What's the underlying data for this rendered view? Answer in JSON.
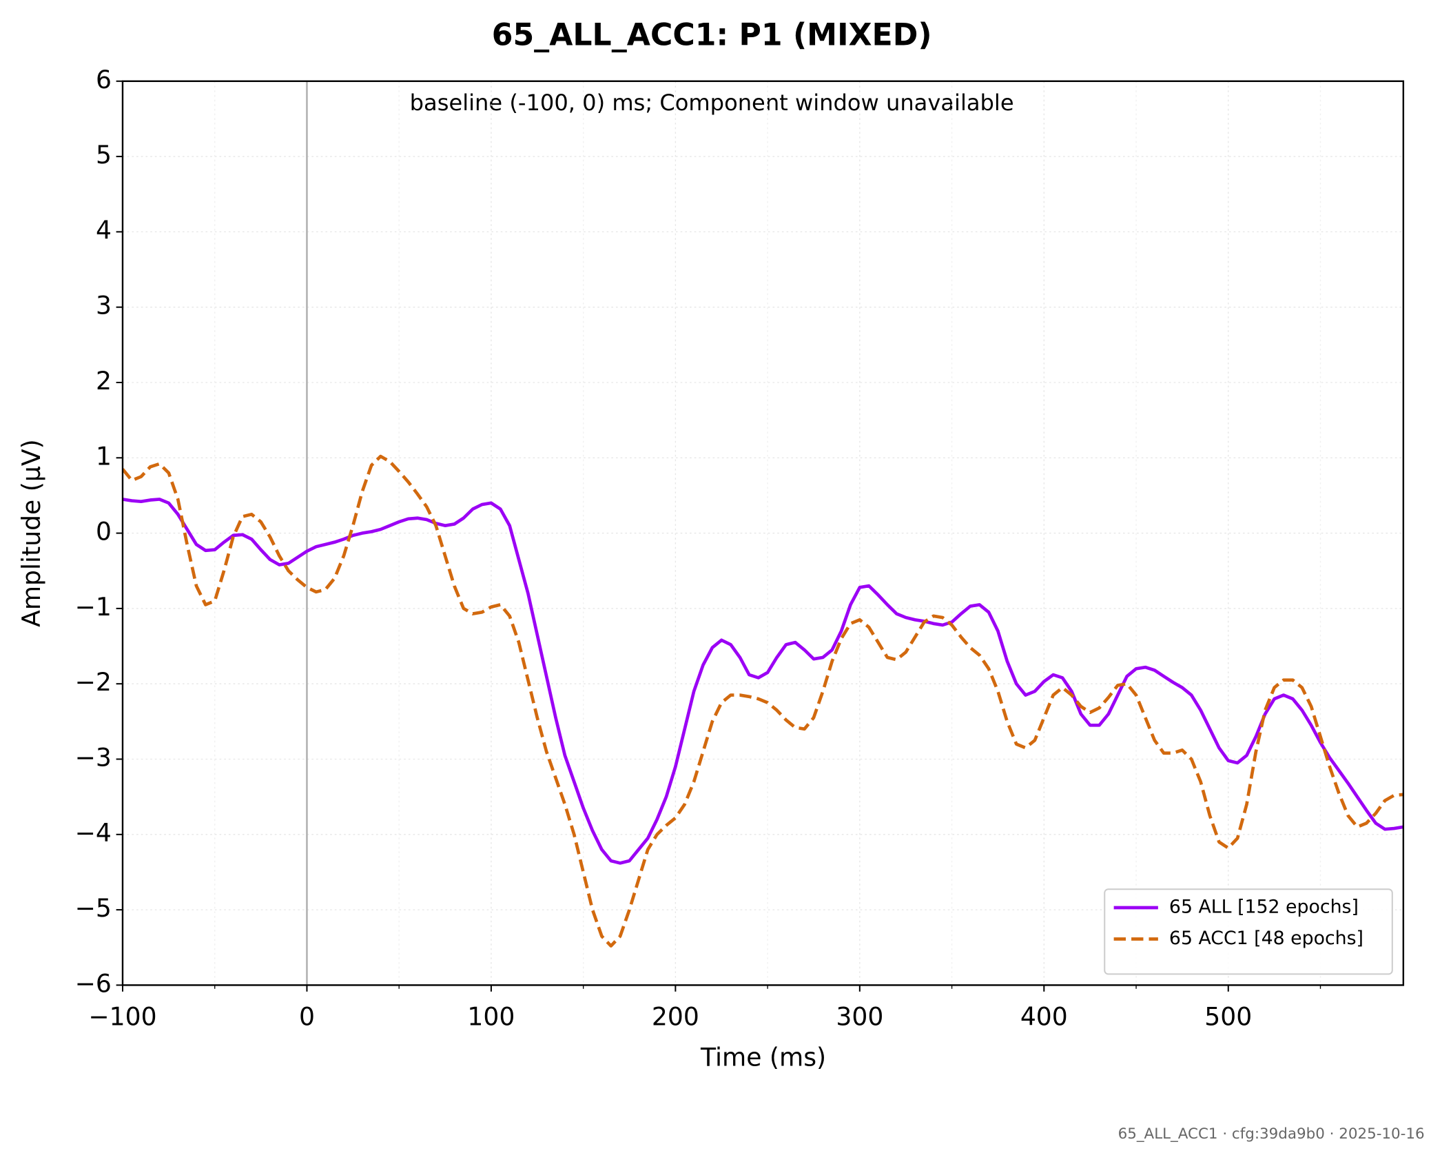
{
  "chart_data": {
    "type": "line",
    "title": "65_ALL_ACC1: P1 (MIXED)",
    "annotation": "baseline (-100, 0) ms; Component window unavailable",
    "xlabel": "Time (ms)",
    "ylabel": "Amplitude (µV)",
    "footer": "65_ALL_ACC1 · cfg:39da9b0 · 2025-10-16",
    "xlim": [
      -100,
      595
    ],
    "ylim": [
      -6,
      6
    ],
    "xticks": [
      {
        "value": -100,
        "label": "−100"
      },
      0,
      100,
      200,
      300,
      400,
      500
    ],
    "xminorticks": [
      -50,
      50,
      150,
      250,
      350,
      450,
      550
    ],
    "yticks": [
      {
        "value": -6,
        "label": "−6"
      },
      {
        "value": -5,
        "label": "−5"
      },
      {
        "value": -4,
        "label": "−4"
      },
      {
        "value": -3,
        "label": "−3"
      },
      {
        "value": -2,
        "label": "−2"
      },
      {
        "value": -1,
        "label": "−1"
      },
      0,
      1,
      2,
      3,
      4,
      5,
      6
    ],
    "grid": true,
    "legend": "lower right",
    "vlines": [
      0
    ],
    "x": [
      -100,
      -95,
      -90,
      -85,
      -80,
      -75,
      -70,
      -65,
      -60,
      -55,
      -50,
      -45,
      -40,
      -35,
      -30,
      -25,
      -20,
      -15,
      -10,
      -5,
      0,
      5,
      10,
      15,
      20,
      25,
      30,
      35,
      40,
      45,
      50,
      55,
      60,
      65,
      70,
      75,
      80,
      85,
      90,
      95,
      100,
      105,
      110,
      115,
      120,
      125,
      130,
      135,
      140,
      145,
      150,
      155,
      160,
      165,
      170,
      175,
      180,
      185,
      190,
      195,
      200,
      205,
      210,
      215,
      220,
      225,
      230,
      235,
      240,
      245,
      250,
      255,
      260,
      265,
      270,
      275,
      280,
      285,
      290,
      295,
      300,
      305,
      310,
      315,
      320,
      325,
      330,
      335,
      340,
      345,
      350,
      355,
      360,
      365,
      370,
      375,
      380,
      385,
      390,
      395,
      400,
      405,
      410,
      415,
      420,
      425,
      430,
      435,
      440,
      445,
      450,
      455,
      460,
      465,
      470,
      475,
      480,
      485,
      490,
      495,
      500,
      505,
      510,
      515,
      520,
      525,
      530,
      535,
      540,
      545,
      550,
      555,
      560,
      565,
      570,
      575,
      580,
      585,
      590,
      595
    ],
    "series": [
      {
        "name": "65 ALL [152 epochs]",
        "color": "#9b00f5",
        "linestyle": "solid",
        "values": [
          0.45,
          0.43,
          0.42,
          0.44,
          0.45,
          0.4,
          0.25,
          0.05,
          -0.15,
          -0.23,
          -0.22,
          -0.12,
          -0.03,
          -0.02,
          -0.08,
          -0.22,
          -0.35,
          -0.42,
          -0.4,
          -0.32,
          -0.24,
          -0.18,
          -0.15,
          -0.12,
          -0.08,
          -0.03,
          0.0,
          0.02,
          0.05,
          0.1,
          0.15,
          0.19,
          0.2,
          0.18,
          0.13,
          0.1,
          0.12,
          0.2,
          0.32,
          0.38,
          0.4,
          0.32,
          0.1,
          -0.35,
          -0.8,
          -1.35,
          -1.9,
          -2.45,
          -2.95,
          -3.3,
          -3.65,
          -3.95,
          -4.2,
          -4.35,
          -4.38,
          -4.35,
          -4.2,
          -4.05,
          -3.8,
          -3.5,
          -3.1,
          -2.6,
          -2.1,
          -1.75,
          -1.52,
          -1.42,
          -1.48,
          -1.65,
          -1.88,
          -1.92,
          -1.85,
          -1.65,
          -1.48,
          -1.45,
          -1.55,
          -1.67,
          -1.65,
          -1.55,
          -1.3,
          -0.95,
          -0.72,
          -0.7,
          -0.82,
          -0.95,
          -1.07,
          -1.12,
          -1.15,
          -1.17,
          -1.2,
          -1.22,
          -1.18,
          -1.07,
          -0.97,
          -0.95,
          -1.05,
          -1.3,
          -1.7,
          -2.0,
          -2.15,
          -2.1,
          -1.97,
          -1.88,
          -1.92,
          -2.1,
          -2.4,
          -2.55,
          -2.55,
          -2.4,
          -2.15,
          -1.9,
          -1.8,
          -1.78,
          -1.82,
          -1.9,
          -1.98,
          -2.05,
          -2.15,
          -2.35,
          -2.6,
          -2.85,
          -3.02,
          -3.05,
          -2.95,
          -2.7,
          -2.4,
          -2.2,
          -2.15,
          -2.2,
          -2.35,
          -2.55,
          -2.78,
          -2.98,
          -3.15,
          -3.32,
          -3.5,
          -3.68,
          -3.85,
          -3.93,
          -3.92,
          -3.9
        ]
      },
      {
        "name": "65 ACC1 [48 epochs]",
        "color": "#d2690e",
        "linestyle": "dashed",
        "values": [
          0.85,
          0.7,
          0.75,
          0.88,
          0.92,
          0.8,
          0.45,
          -0.15,
          -0.7,
          -0.95,
          -0.9,
          -0.5,
          -0.05,
          0.22,
          0.25,
          0.15,
          -0.05,
          -0.3,
          -0.5,
          -0.62,
          -0.72,
          -0.78,
          -0.75,
          -0.6,
          -0.3,
          0.1,
          0.55,
          0.9,
          1.02,
          0.95,
          0.82,
          0.68,
          0.52,
          0.35,
          0.1,
          -0.3,
          -0.7,
          -1.0,
          -1.07,
          -1.05,
          -0.98,
          -0.95,
          -1.1,
          -1.45,
          -1.95,
          -2.45,
          -2.9,
          -3.25,
          -3.6,
          -4.0,
          -4.5,
          -5.0,
          -5.35,
          -5.48,
          -5.35,
          -5.0,
          -4.6,
          -4.2,
          -4.0,
          -3.88,
          -3.78,
          -3.6,
          -3.3,
          -2.9,
          -2.5,
          -2.25,
          -2.15,
          -2.15,
          -2.17,
          -2.2,
          -2.25,
          -2.35,
          -2.48,
          -2.58,
          -2.6,
          -2.45,
          -2.1,
          -1.7,
          -1.4,
          -1.2,
          -1.15,
          -1.25,
          -1.45,
          -1.65,
          -1.68,
          -1.58,
          -1.38,
          -1.18,
          -1.1,
          -1.12,
          -1.22,
          -1.38,
          -1.52,
          -1.62,
          -1.8,
          -2.1,
          -2.5,
          -2.8,
          -2.85,
          -2.75,
          -2.45,
          -2.15,
          -2.05,
          -2.15,
          -2.3,
          -2.38,
          -2.32,
          -2.18,
          -2.02,
          -2.0,
          -2.15,
          -2.45,
          -2.75,
          -2.92,
          -2.92,
          -2.88,
          -3.0,
          -3.3,
          -3.75,
          -4.1,
          -4.18,
          -4.05,
          -3.6,
          -2.9,
          -2.35,
          -2.05,
          -1.95,
          -1.95,
          -2.05,
          -2.3,
          -2.7,
          -3.1,
          -3.45,
          -3.75,
          -3.9,
          -3.85,
          -3.72,
          -3.55,
          -3.48,
          -3.47
        ]
      }
    ]
  }
}
